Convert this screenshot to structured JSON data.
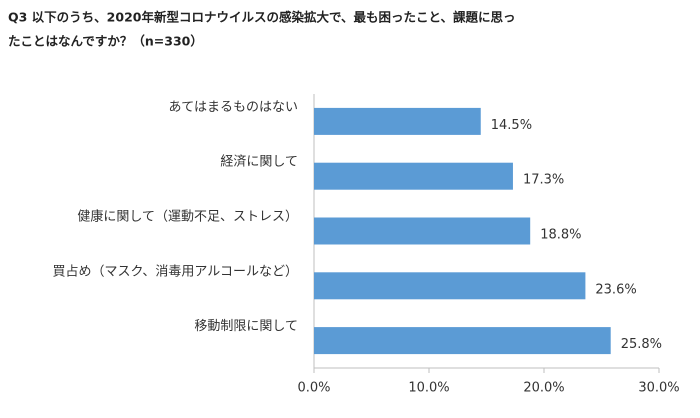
{
  "chart_data": {
    "type": "hbar",
    "title": [
      "Q3 以下のうち、2020年新型コロナウイルスの感染拡大で、最も困ったこと、課題に思っ",
      "たことはなんですか？（n=330）"
    ],
    "categories": [
      "あてはまるものはない",
      "経済に関して",
      "健康に関して（運動不足、ストレス）",
      "買占め（マスク、消毒用アルコールなど）",
      "移動制限に関して"
    ],
    "values": [
      14.5,
      17.3,
      18.8,
      23.6,
      25.8
    ],
    "value_labels": [
      "14.5%",
      "17.3%",
      "18.8%",
      "23.6%",
      "25.8%"
    ],
    "color": "#5b9bd5",
    "xlim": [
      0,
      30
    ],
    "xticks": [
      {
        "value": 0,
        "label": "0.0%"
      },
      {
        "value": 10,
        "label": "10.0%"
      },
      {
        "value": 20,
        "label": "20.0%"
      },
      {
        "value": 30,
        "label": "30.0%"
      }
    ],
    "grid": false
  }
}
